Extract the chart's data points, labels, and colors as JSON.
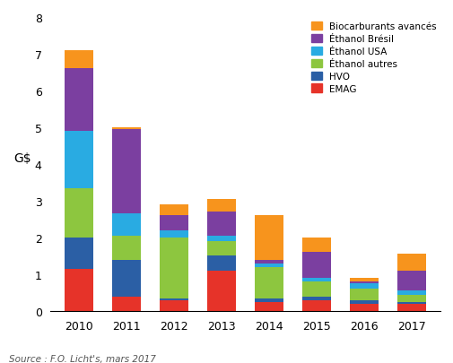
{
  "years": [
    2010,
    2011,
    2012,
    2013,
    2014,
    2015,
    2016,
    2017
  ],
  "segments": {
    "EMAG": [
      1.15,
      0.4,
      0.3,
      1.1,
      0.25,
      0.3,
      0.2,
      0.2
    ],
    "HVO": [
      0.85,
      1.0,
      0.05,
      0.4,
      0.1,
      0.1,
      0.1,
      0.05
    ],
    "Ethanol_autres": [
      1.35,
      0.65,
      1.65,
      0.4,
      0.85,
      0.4,
      0.3,
      0.2
    ],
    "Ethanol_USA": [
      1.55,
      0.6,
      0.2,
      0.15,
      0.1,
      0.1,
      0.15,
      0.1
    ],
    "Ethanol_Bresil": [
      1.7,
      2.3,
      0.4,
      0.65,
      0.1,
      0.7,
      0.05,
      0.55
    ],
    "Biocarburants_avances": [
      0.5,
      0.05,
      0.3,
      0.35,
      1.2,
      0.4,
      0.1,
      0.45
    ]
  },
  "colors": {
    "EMAG": "#e63329",
    "HVO": "#2b5fa5",
    "Ethanol_autres": "#8dc63f",
    "Ethanol_USA": "#29abe2",
    "Ethanol_Bresil": "#7b3fa0",
    "Biocarburants_avances": "#f7941d"
  },
  "labels": {
    "EMAG": "EMAG",
    "HVO": "HVO",
    "Ethanol_autres": "Éthanol autres",
    "Ethanol_USA": "Éthanol USA",
    "Ethanol_Bresil": "Éthanol Brésil",
    "Biocarburants_avances": "Biocarburants avancés"
  },
  "ylim": [
    0,
    8
  ],
  "yticks": [
    0,
    1,
    2,
    3,
    4,
    5,
    6,
    7,
    8
  ],
  "source_text": "Source : F.O. Licht's, mars 2017",
  "background_color": "#ffffff",
  "bar_width": 0.6,
  "figsize": [
    5.06,
    4.06
  ],
  "dpi": 100
}
